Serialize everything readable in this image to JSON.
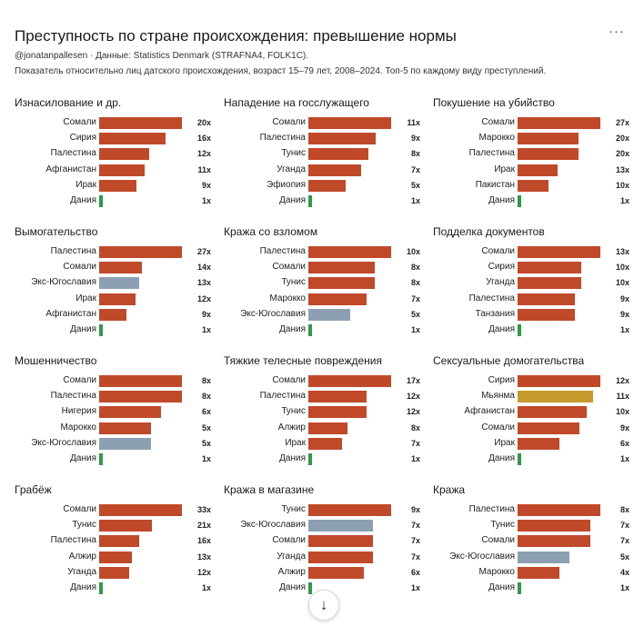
{
  "header": {
    "title": "Преступность по стране происхождения: превышение нормы",
    "source": "@jonatanpallesen · Данные: Statistics Denmark (STRAFNA4, FOLK1C).",
    "subtitle": "Показатель относительно лиц датского происхождения, возраст 15–79 лет, 2008–2024. Топ-5 по каждому виду преступлений.",
    "menu_label": "···"
  },
  "scroll_button": {
    "icon": "arrow-down-icon",
    "glyph": "↓"
  },
  "colors": {
    "default": "#c0492a",
    "yugoslavia": "#8da0b3",
    "myanmar": "#c79a2e",
    "denmark": "#2f9a48"
  },
  "chart_data": [
    {
      "type": "bar",
      "title": "Изнасилование и др.",
      "categories": [
        "Сомали",
        "Сирия",
        "Палестина",
        "Афганистан",
        "Ирак",
        "Дания"
      ],
      "values": [
        20,
        16,
        12,
        11,
        9,
        1
      ],
      "value_labels": [
        "20x",
        "16x",
        "12x",
        "11x",
        "9x",
        "1x"
      ],
      "colors": [
        "default",
        "default",
        "default",
        "default",
        "default",
        "denmark"
      ]
    },
    {
      "type": "bar",
      "title": "Нападение на госслужащего",
      "categories": [
        "Сомали",
        "Палестина",
        "Тунис",
        "Уганда",
        "Эфиопия",
        "Дания"
      ],
      "values": [
        11,
        9,
        8,
        7,
        5,
        1
      ],
      "value_labels": [
        "11x",
        "9x",
        "8x",
        "7x",
        "5x",
        "1x"
      ],
      "colors": [
        "default",
        "default",
        "default",
        "default",
        "default",
        "denmark"
      ]
    },
    {
      "type": "bar",
      "title": "Покушение на убийство",
      "categories": [
        "Сомали",
        "Марокко",
        "Палестина",
        "Ирак",
        "Пакистан",
        "Дания"
      ],
      "values": [
        27,
        20,
        20,
        13,
        10,
        1
      ],
      "value_labels": [
        "27x",
        "20x",
        "20x",
        "13x",
        "10x",
        "1x"
      ],
      "colors": [
        "default",
        "default",
        "default",
        "default",
        "default",
        "denmark"
      ]
    },
    {
      "type": "bar",
      "title": "Вымогательство",
      "categories": [
        "Палестина",
        "Сомали",
        "Экс-Югославия",
        "Ирак",
        "Афганистан",
        "Дания"
      ],
      "values": [
        27,
        14,
        13,
        12,
        9,
        1
      ],
      "value_labels": [
        "27x",
        "14x",
        "13x",
        "12x",
        "9x",
        "1x"
      ],
      "colors": [
        "default",
        "default",
        "yugoslavia",
        "default",
        "default",
        "denmark"
      ]
    },
    {
      "type": "bar",
      "title": "Кража со взломом",
      "categories": [
        "Палестина",
        "Сомали",
        "Тунис",
        "Марокко",
        "Экс-Югославия",
        "Дания"
      ],
      "values": [
        10,
        8,
        8,
        7,
        5,
        1
      ],
      "value_labels": [
        "10x",
        "8x",
        "8x",
        "7x",
        "5x",
        "1x"
      ],
      "colors": [
        "default",
        "default",
        "default",
        "default",
        "yugoslavia",
        "denmark"
      ]
    },
    {
      "type": "bar",
      "title": "Подделка документов",
      "categories": [
        "Сомали",
        "Сирия",
        "Уганда",
        "Палестина",
        "Танзания",
        "Дания"
      ],
      "values": [
        13,
        10,
        10,
        9,
        9,
        1
      ],
      "value_labels": [
        "13x",
        "10x",
        "10x",
        "9x",
        "9x",
        "1x"
      ],
      "colors": [
        "default",
        "default",
        "default",
        "default",
        "default",
        "denmark"
      ]
    },
    {
      "type": "bar",
      "title": "Мошенничество",
      "categories": [
        "Сомали",
        "Палестина",
        "Нигерия",
        "Марокко",
        "Экс-Югославия",
        "Дания"
      ],
      "values": [
        8,
        8,
        6,
        5,
        5,
        1
      ],
      "value_labels": [
        "8x",
        "8x",
        "6x",
        "5x",
        "5x",
        "1x"
      ],
      "colors": [
        "default",
        "default",
        "default",
        "default",
        "yugoslavia",
        "denmark"
      ]
    },
    {
      "type": "bar",
      "title": "Тяжкие телесные повреждения",
      "categories": [
        "Сомали",
        "Палестина",
        "Тунис",
        "Алжир",
        "Ирак",
        "Дания"
      ],
      "values": [
        17,
        12,
        12,
        8,
        7,
        1
      ],
      "value_labels": [
        "17x",
        "12x",
        "12x",
        "8x",
        "7x",
        "1x"
      ],
      "colors": [
        "default",
        "default",
        "default",
        "default",
        "default",
        "denmark"
      ]
    },
    {
      "type": "bar",
      "title": "Сексуальные домогательства",
      "categories": [
        "Сирия",
        "Мьянма",
        "Афганистан",
        "Сомали",
        "Ирак",
        "Дания"
      ],
      "values": [
        12,
        11,
        10,
        9,
        6,
        1
      ],
      "value_labels": [
        "12x",
        "11x",
        "10x",
        "9x",
        "6x",
        "1x"
      ],
      "colors": [
        "default",
        "myanmar",
        "default",
        "default",
        "default",
        "denmark"
      ]
    },
    {
      "type": "bar",
      "title": "Грабёж",
      "categories": [
        "Сомали",
        "Тунис",
        "Палестина",
        "Алжир",
        "Уганда",
        "Дания"
      ],
      "values": [
        33,
        21,
        16,
        13,
        12,
        1
      ],
      "value_labels": [
        "33x",
        "21x",
        "16x",
        "13x",
        "12x",
        "1x"
      ],
      "colors": [
        "default",
        "default",
        "default",
        "default",
        "default",
        "denmark"
      ]
    },
    {
      "type": "bar",
      "title": "Кража в магазине",
      "categories": [
        "Тунис",
        "Экс-Югославия",
        "Сомали",
        "Уганда",
        "Алжир",
        "Дания"
      ],
      "values": [
        9,
        7,
        7,
        7,
        6,
        1
      ],
      "value_labels": [
        "9x",
        "7x",
        "7x",
        "7x",
        "6x",
        "1x"
      ],
      "colors": [
        "default",
        "yugoslavia",
        "default",
        "default",
        "default",
        "denmark"
      ]
    },
    {
      "type": "bar",
      "title": "Кража",
      "categories": [
        "Палестина",
        "Тунис",
        "Сомали",
        "Экс-Югославия",
        "Марокко",
        "Дания"
      ],
      "values": [
        8,
        7,
        7,
        5,
        4,
        1
      ],
      "value_labels": [
        "8x",
        "7x",
        "7x",
        "5x",
        "4x",
        "1x"
      ],
      "colors": [
        "default",
        "default",
        "default",
        "yugoslavia",
        "default",
        "denmark"
      ]
    }
  ]
}
